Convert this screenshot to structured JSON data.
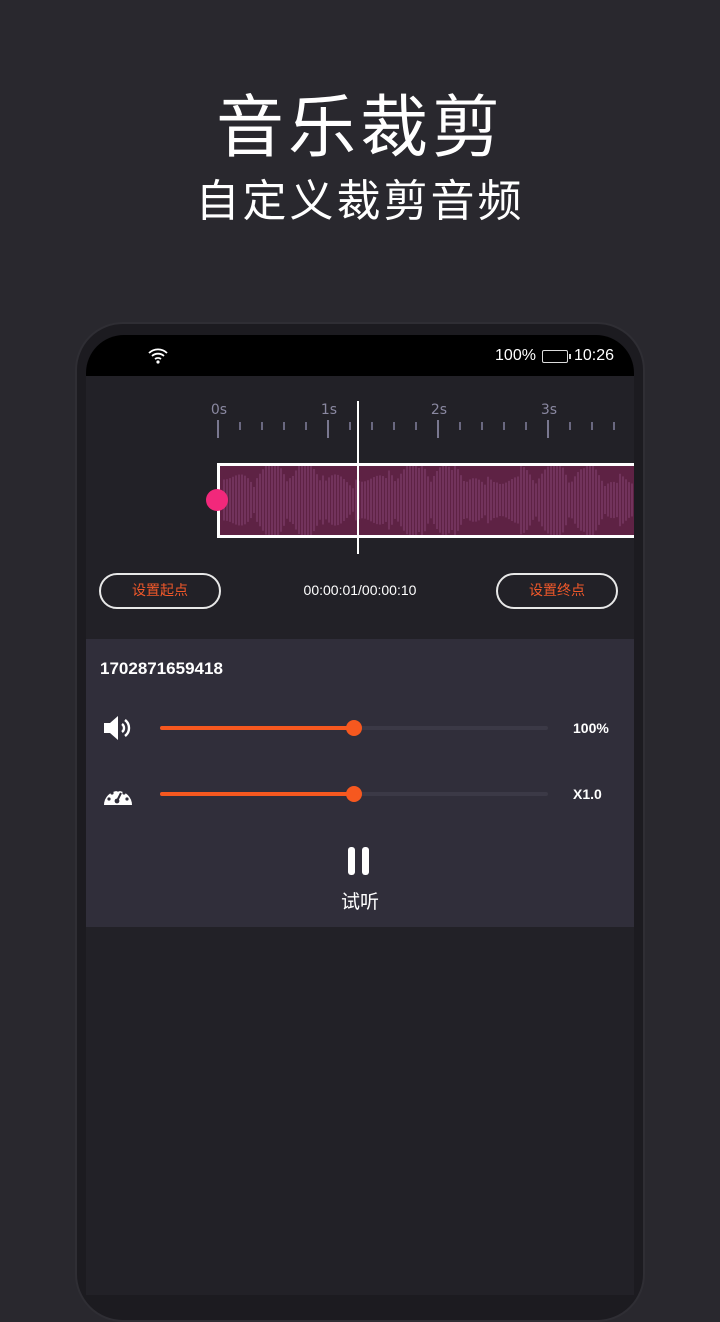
{
  "header": {
    "title": "音乐裁剪",
    "subtitle": "自定义裁剪音频"
  },
  "status_bar": {
    "battery": "100%",
    "time": "10:26",
    "icons": [
      "wifi-icon",
      "battery-charging-icon"
    ]
  },
  "timeline": {
    "labels": [
      "0s",
      "1s",
      "2s",
      "3s"
    ]
  },
  "controls": {
    "set_start": "设置起点",
    "set_end": "设置终点",
    "time": "00:00:01/00:00:10"
  },
  "panel": {
    "file_name": "1702871659418",
    "volume": {
      "label": "100%",
      "level": 0.5
    },
    "speed": {
      "label": "X1.0",
      "level": 0.5
    },
    "play_label": "试听"
  },
  "colors": {
    "accent": "#f6581f",
    "handle": "#f2287b",
    "waveform": "#5e2244"
  }
}
